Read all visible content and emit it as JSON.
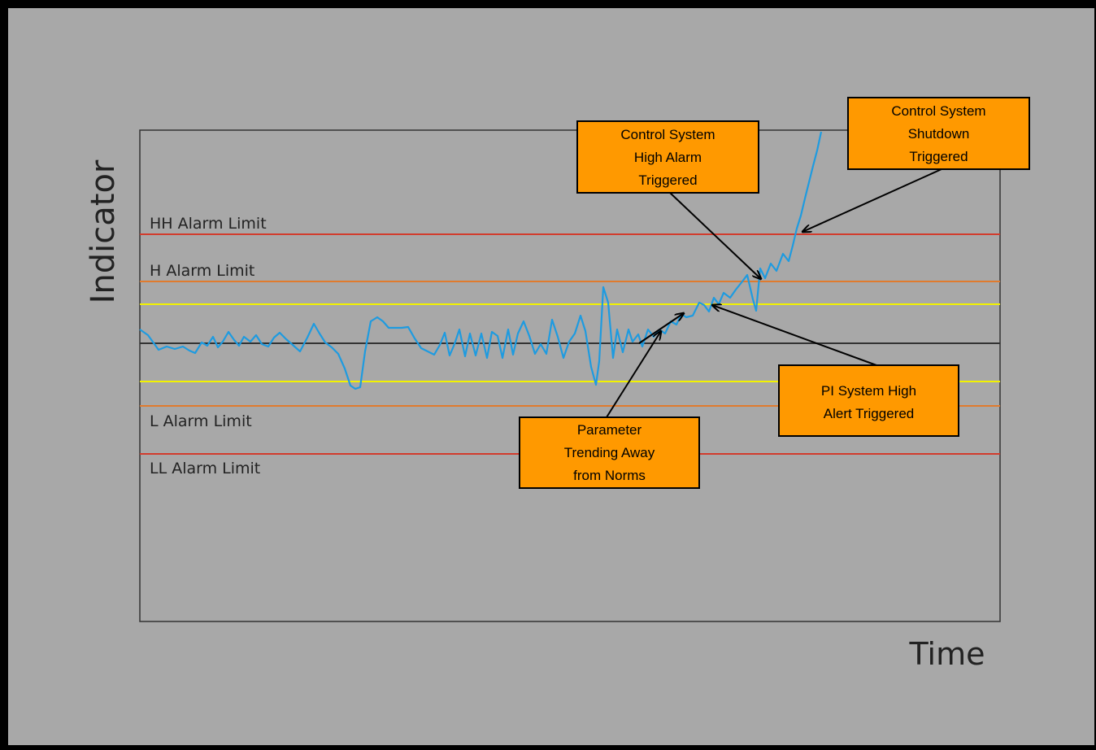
{
  "axes": {
    "y_label": "Indicator",
    "x_label": "Time"
  },
  "limits": [
    {
      "id": "hh",
      "label": "HH Alarm Limit",
      "color": "#d23b2c"
    },
    {
      "id": "h",
      "label": "H Alarm Limit",
      "color": "#e07b2e"
    },
    {
      "id": "alert_high",
      "label": "",
      "color": "#f2f200"
    },
    {
      "id": "setpoint",
      "label": "",
      "color": "#333333"
    },
    {
      "id": "alert_low",
      "label": "",
      "color": "#f2f200"
    },
    {
      "id": "l",
      "label": "L Alarm Limit",
      "color": "#e07b2e"
    },
    {
      "id": "ll",
      "label": "LL Alarm Limit",
      "color": "#d23b2c"
    }
  ],
  "trend": {
    "color": "#1e9be0"
  },
  "callouts": {
    "trending": {
      "lines": [
        "Parameter",
        "Trending Away",
        "from Norms"
      ]
    },
    "pi_alert": {
      "lines": [
        "PI System High",
        "Alert Triggered"
      ]
    },
    "cs_high": {
      "lines": [
        "Control System",
        "High Alarm",
        "Triggered"
      ]
    },
    "cs_shutdown": {
      "lines": [
        "Control System",
        "Shutdown",
        "Triggered"
      ]
    }
  },
  "colors": {
    "background": "#a8a8a8",
    "callout_fill": "#ff9900",
    "plot_border": "#333333"
  }
}
